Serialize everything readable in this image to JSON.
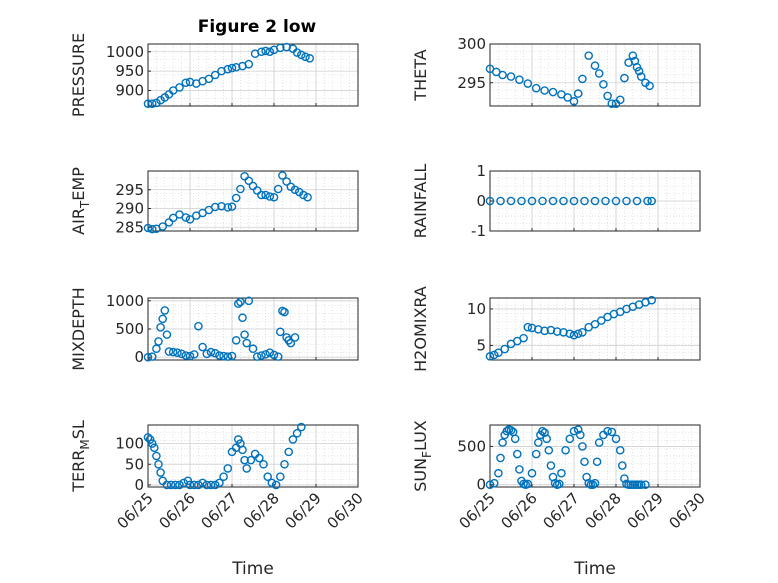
{
  "chart_data": [
    {
      "type": "scatter",
      "title": "Figure 2 low",
      "ylabel": "PRESSURE",
      "ylabel_sub": null,
      "xlabel": "",
      "ylim": [
        860,
        1020
      ],
      "yticks": [
        900,
        950,
        1000
      ],
      "xlim": [
        "06/25",
        "06/30"
      ],
      "xticks": [
        "06/25",
        "06/26",
        "06/27",
        "06/28",
        "06/29",
        "06/30"
      ],
      "grid": true,
      "series": [
        {
          "x": [
            0.0,
            0.1,
            0.2,
            0.3,
            0.4,
            0.5,
            0.6,
            0.75,
            0.9,
            1.0,
            1.15,
            1.3,
            1.45,
            1.6,
            1.75,
            1.9,
            2.0,
            2.1,
            2.25,
            2.4,
            2.55,
            2.7,
            2.8,
            2.9,
            3.0,
            3.15,
            3.3,
            3.45,
            3.55,
            3.65,
            3.75,
            3.85
          ],
          "y": [
            866,
            866,
            868,
            875,
            882,
            890,
            900,
            908,
            920,
            922,
            918,
            924,
            930,
            940,
            950,
            955,
            958,
            960,
            963,
            968,
            995,
            1000,
            1002,
            1000,
            1005,
            1010,
            1012,
            1008,
            998,
            992,
            987,
            983
          ]
        }
      ]
    },
    {
      "type": "scatter",
      "title": "",
      "ylabel": "THETA",
      "ylabel_sub": null,
      "xlabel": "",
      "ylim": [
        292,
        300
      ],
      "yticks": [
        295,
        300
      ],
      "xlim": [
        "06/25",
        "06/30"
      ],
      "xticks": [
        "06/25",
        "06/26",
        "06/27",
        "06/28",
        "06/29",
        "06/30"
      ],
      "grid": true,
      "series": [
        {
          "x": [
            0.0,
            0.15,
            0.3,
            0.5,
            0.7,
            0.9,
            1.1,
            1.3,
            1.5,
            1.7,
            1.85,
            2.0,
            2.1,
            2.2,
            2.35,
            2.5,
            2.6,
            2.7,
            2.8,
            2.9,
            3.0,
            3.1,
            3.2,
            3.3,
            3.4,
            3.45,
            3.5,
            3.55,
            3.6,
            3.7,
            3.8
          ],
          "y": [
            296.8,
            296.4,
            296.0,
            295.8,
            295.4,
            294.9,
            294.3,
            294.0,
            293.8,
            293.5,
            293.1,
            292.6,
            293.6,
            295.5,
            298.5,
            297.2,
            296.2,
            294.8,
            293.3,
            292.3,
            292.3,
            292.8,
            295.6,
            297.6,
            298.5,
            297.8,
            297.0,
            296.5,
            295.8,
            295.0,
            294.6
          ]
        }
      ]
    },
    {
      "type": "scatter",
      "title": "",
      "ylabel": "AIR",
      "ylabel_sub": "T",
      "ylabel_tail": "EMP",
      "xlabel": "",
      "ylim": [
        284,
        300
      ],
      "yticks": [
        285,
        290,
        295
      ],
      "xlim": [
        "06/25",
        "06/30"
      ],
      "xticks": [
        "06/25",
        "06/26",
        "06/27",
        "06/28",
        "06/29",
        "06/30"
      ],
      "grid": true,
      "series": [
        {
          "x": [
            0.0,
            0.1,
            0.2,
            0.35,
            0.5,
            0.6,
            0.75,
            0.9,
            1.0,
            1.15,
            1.3,
            1.45,
            1.6,
            1.75,
            1.9,
            2.0,
            2.1,
            2.2,
            2.3,
            2.4,
            2.5,
            2.6,
            2.7,
            2.8,
            2.9,
            3.0,
            3.1,
            3.2,
            3.3,
            3.4,
            3.5,
            3.6,
            3.7,
            3.8
          ],
          "y": [
            284.8,
            284.5,
            284.6,
            285.2,
            286.3,
            287.5,
            288.4,
            287.6,
            287.1,
            288.1,
            288.8,
            289.6,
            290.4,
            290.6,
            290.3,
            290.5,
            292.8,
            295.2,
            298.6,
            297.4,
            296.0,
            294.8,
            293.6,
            293.6,
            293.2,
            293.0,
            295.2,
            298.8,
            297.2,
            295.8,
            295.0,
            294.4,
            293.6,
            293.0
          ]
        }
      ]
    },
    {
      "type": "scatter",
      "title": "",
      "ylabel": "RAINFALL",
      "ylabel_sub": null,
      "xlabel": "",
      "ylim": [
        -1,
        1
      ],
      "yticks": [
        -1,
        0,
        1
      ],
      "xlim": [
        "06/25",
        "06/30"
      ],
      "xticks": [
        "06/25",
        "06/26",
        "06/27",
        "06/28",
        "06/29",
        "06/30"
      ],
      "grid": true,
      "series": [
        {
          "x": [
            0.0,
            0.25,
            0.5,
            0.75,
            1.0,
            1.25,
            1.5,
            1.75,
            2.0,
            2.25,
            2.5,
            2.75,
            3.0,
            3.25,
            3.5,
            3.75,
            3.85
          ],
          "y": [
            0,
            0,
            0,
            0,
            0,
            0,
            0,
            0,
            0,
            0,
            0,
            0,
            0,
            0,
            0,
            0,
            0
          ]
        }
      ]
    },
    {
      "type": "scatter",
      "title": "",
      "ylabel": "MIXDEPTH",
      "ylabel_sub": null,
      "xlabel": "",
      "ylim": [
        -50,
        1050
      ],
      "yticks": [
        0,
        500,
        1000
      ],
      "xlim": [
        "06/25",
        "06/30"
      ],
      "xticks": [
        "06/25",
        "06/26",
        "06/27",
        "06/28",
        "06/29",
        "06/30"
      ],
      "grid": true,
      "series": [
        {
          "x": [
            0.0,
            0.1,
            0.2,
            0.25,
            0.3,
            0.35,
            0.4,
            0.45,
            0.5,
            0.6,
            0.7,
            0.8,
            0.9,
            1.0,
            1.1,
            1.2,
            1.3,
            1.4,
            1.5,
            1.6,
            1.7,
            1.8,
            1.9,
            2.0,
            2.1,
            2.15,
            2.2,
            2.25,
            2.3,
            2.35,
            2.4,
            2.5,
            2.6,
            2.7,
            2.8,
            2.9,
            3.0,
            3.1,
            3.15,
            3.2,
            3.25,
            3.3,
            3.35,
            3.4,
            3.5
          ],
          "y": [
            0,
            10,
            150,
            280,
            530,
            680,
            830,
            400,
            100,
            90,
            80,
            60,
            30,
            20,
            50,
            550,
            180,
            60,
            90,
            70,
            30,
            20,
            10,
            20,
            300,
            950,
            980,
            700,
            400,
            250,
            1000,
            150,
            10,
            30,
            50,
            80,
            40,
            10,
            450,
            820,
            800,
            350,
            300,
            250,
            350
          ]
        }
      ]
    },
    {
      "type": "scatter",
      "title": "",
      "ylabel": "H2OMIXRA",
      "ylabel_sub": null,
      "xlabel": "",
      "ylim": [
        3,
        11.5
      ],
      "yticks": [
        5,
        10
      ],
      "xlim": [
        "06/25",
        "06/30"
      ],
      "xticks": [
        "06/25",
        "06/26",
        "06/27",
        "06/28",
        "06/29",
        "06/30"
      ],
      "grid": true,
      "series": [
        {
          "x": [
            0.0,
            0.1,
            0.2,
            0.35,
            0.5,
            0.65,
            0.8,
            0.9,
            1.0,
            1.15,
            1.3,
            1.45,
            1.6,
            1.75,
            1.9,
            2.0,
            2.1,
            2.2,
            2.35,
            2.5,
            2.65,
            2.8,
            2.95,
            3.1,
            3.25,
            3.4,
            3.55,
            3.7,
            3.85
          ],
          "y": [
            3.5,
            3.7,
            4.0,
            4.5,
            5.2,
            5.6,
            6.0,
            7.5,
            7.4,
            7.2,
            7.0,
            7.1,
            6.9,
            6.8,
            6.6,
            6.4,
            6.6,
            6.8,
            7.5,
            7.9,
            8.4,
            8.9,
            9.3,
            9.6,
            10.0,
            10.3,
            10.6,
            10.9,
            11.2
          ]
        }
      ]
    },
    {
      "type": "scatter",
      "title": "",
      "ylabel": "TERR",
      "ylabel_sub": "M",
      "ylabel_tail": "SL",
      "xlabel": "Time",
      "ylim": [
        -5,
        145
      ],
      "yticks": [
        0,
        50,
        100
      ],
      "xlim": [
        "06/25",
        "06/30"
      ],
      "xticks": [
        "06/25",
        "06/26",
        "06/27",
        "06/28",
        "06/29",
        "06/30"
      ],
      "grid": true,
      "series": [
        {
          "x": [
            0.0,
            0.05,
            0.1,
            0.15,
            0.2,
            0.25,
            0.3,
            0.35,
            0.45,
            0.55,
            0.65,
            0.75,
            0.85,
            0.95,
            1.0,
            1.1,
            1.2,
            1.3,
            1.4,
            1.5,
            1.6,
            1.7,
            1.8,
            1.9,
            2.0,
            2.1,
            2.15,
            2.2,
            2.25,
            2.3,
            2.35,
            2.45,
            2.55,
            2.65,
            2.75,
            2.85,
            2.95,
            3.05,
            3.15,
            3.25,
            3.35,
            3.45,
            3.55,
            3.65
          ],
          "y": [
            115,
            110,
            100,
            90,
            70,
            50,
            30,
            10,
            0,
            0,
            0,
            0,
            5,
            10,
            0,
            0,
            0,
            5,
            0,
            0,
            0,
            5,
            20,
            40,
            80,
            90,
            110,
            100,
            85,
            60,
            40,
            60,
            75,
            65,
            50,
            20,
            5,
            0,
            20,
            50,
            80,
            110,
            125,
            140
          ]
        }
      ]
    },
    {
      "type": "scatter",
      "title": "",
      "ylabel": "SUN",
      "ylabel_sub": "F",
      "ylabel_tail": "LUX",
      "xlabel": "Time",
      "ylim": [
        -30,
        780
      ],
      "yticks": [
        0,
        500
      ],
      "xlim": [
        "06/25",
        "06/30"
      ],
      "xticks": [
        "06/25",
        "06/26",
        "06/27",
        "06/28",
        "06/29",
        "06/30"
      ],
      "grid": true,
      "series": [
        {
          "x": [
            0.0,
            0.1,
            0.2,
            0.25,
            0.3,
            0.35,
            0.4,
            0.45,
            0.5,
            0.55,
            0.6,
            0.65,
            0.7,
            0.75,
            0.8,
            0.85,
            0.9,
            1.0,
            1.1,
            1.15,
            1.2,
            1.25,
            1.3,
            1.35,
            1.4,
            1.45,
            1.5,
            1.55,
            1.6,
            1.65,
            1.7,
            1.8,
            1.9,
            2.0,
            2.1,
            2.15,
            2.2,
            2.25,
            2.3,
            2.35,
            2.4,
            2.45,
            2.5,
            2.55,
            2.6,
            2.7,
            2.8,
            2.9,
            3.0,
            3.1,
            3.15,
            3.2,
            3.25,
            3.3,
            3.35,
            3.4,
            3.45,
            3.5,
            3.55,
            3.6,
            3.7
          ],
          "y": [
            0,
            20,
            150,
            350,
            550,
            650,
            700,
            720,
            710,
            690,
            600,
            400,
            200,
            50,
            10,
            0,
            10,
            150,
            400,
            550,
            650,
            700,
            680,
            600,
            450,
            250,
            100,
            20,
            0,
            10,
            150,
            450,
            600,
            700,
            720,
            650,
            500,
            300,
            100,
            20,
            0,
            0,
            20,
            300,
            550,
            650,
            700,
            690,
            600,
            450,
            250,
            80,
            10,
            0,
            0,
            0,
            0,
            0,
            0,
            0,
            0
          ]
        }
      ]
    }
  ]
}
